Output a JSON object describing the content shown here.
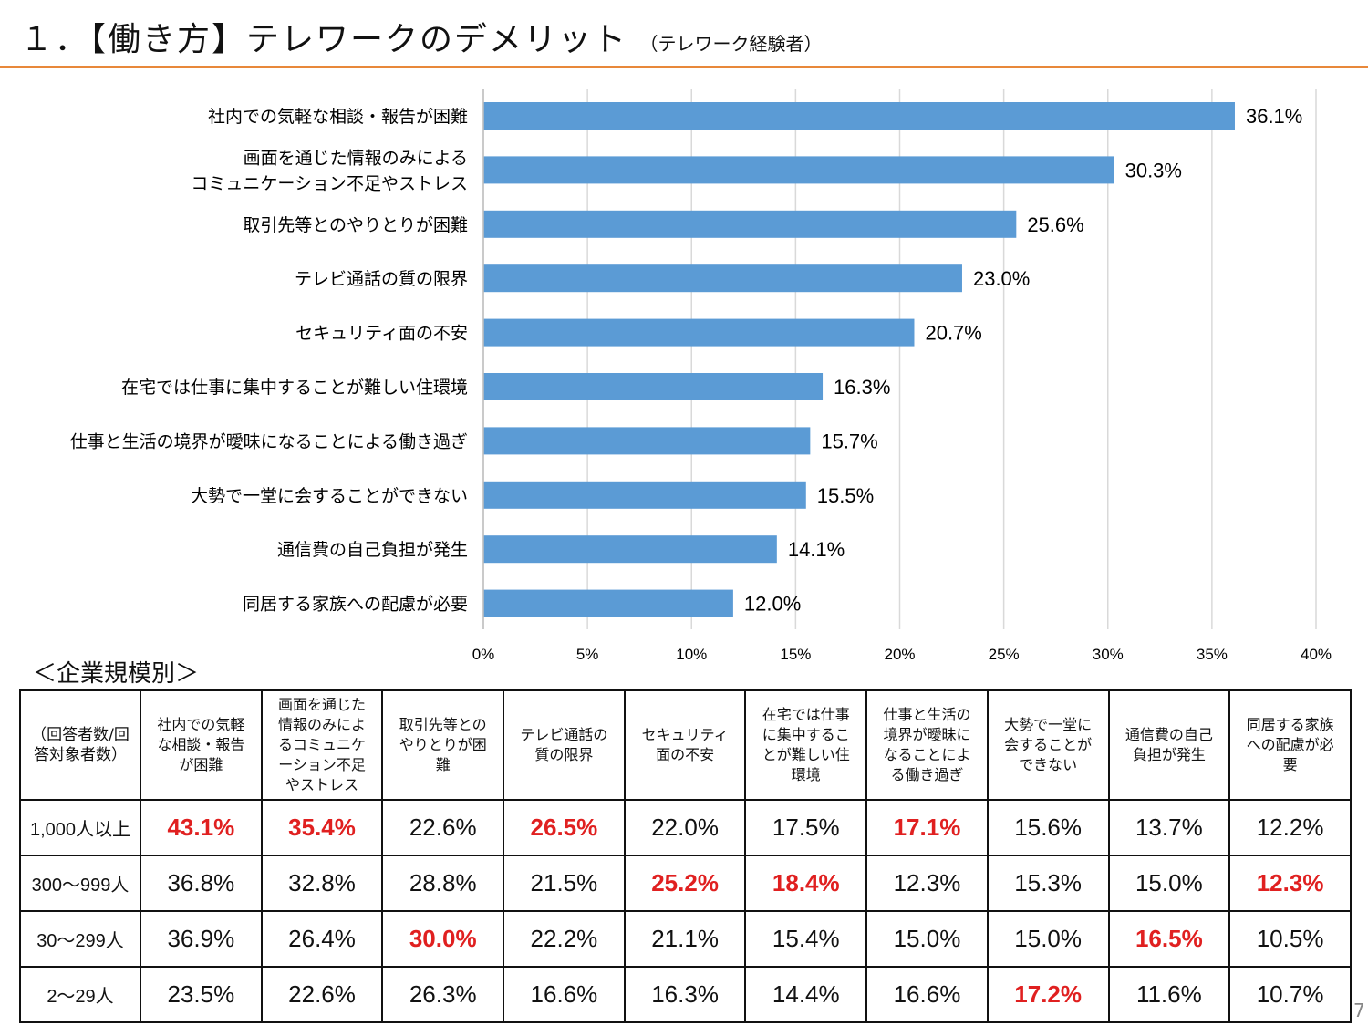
{
  "title": {
    "main": "１．【働き方】テレワークのデメリット",
    "sub": "（テレワーク経験者）"
  },
  "colors": {
    "bar": "#5b9bd5",
    "accent_line": "#e8883a",
    "highlight": "#e02020",
    "grid": "#d9d9d9"
  },
  "chart_data": {
    "type": "bar",
    "orientation": "horizontal",
    "categories": [
      "社内での気軽な相談・報告が困難",
      "画面を通じた情報のみによる\nコミュニケーション不足やストレス",
      "取引先等とのやりとりが困難",
      "テレビ通話の質の限界",
      "セキュリティ面の不安",
      "在宅では仕事に集中することが難しい住環境",
      "仕事と生活の境界が曖昧になることによる働き過ぎ",
      "大勢で一堂に会することができない",
      "通信費の自己負担が発生",
      "同居する家族への配慮が必要"
    ],
    "values": [
      36.1,
      30.3,
      25.6,
      23.0,
      20.7,
      16.3,
      15.7,
      15.5,
      14.1,
      12.0
    ],
    "data_labels": [
      "36.1%",
      "30.3%",
      "25.6%",
      "23.0%",
      "20.7%",
      "16.3%",
      "15.7%",
      "15.5%",
      "14.1%",
      "12.0%"
    ],
    "xlim": [
      0,
      40
    ],
    "xticks": [
      "0%",
      "5%",
      "10%",
      "15%",
      "20%",
      "25%",
      "30%",
      "35%",
      "40%"
    ],
    "grid": true
  },
  "table": {
    "section_label": "＜企業規模別＞",
    "corner_header": "（回答者数/回答対象者数）",
    "headers": [
      "社内での気軽な相談・報告が困難",
      "画面を通じた情報のみによるコミュニケーション不足やストレス",
      "取引先等とのやりとりが困難",
      "テレビ通話の質の限界",
      "セキュリティ面の不安",
      "在宅では仕事に集中することが難しい住環境",
      "仕事と生活の境界が曖昧になることによる働き過ぎ",
      "大勢で一堂に会することができない",
      "通信費の自己負担が発生",
      "同居する家族への配慮が必要"
    ],
    "rows": [
      {
        "label": "1,000人以上",
        "values": [
          "43.1%",
          "35.4%",
          "22.6%",
          "26.5%",
          "22.0%",
          "17.5%",
          "17.1%",
          "15.6%",
          "13.7%",
          "12.2%"
        ],
        "highlighted": [
          0,
          1,
          3,
          6
        ]
      },
      {
        "label": "300～999人",
        "values": [
          "36.8%",
          "32.8%",
          "28.8%",
          "21.5%",
          "25.2%",
          "18.4%",
          "12.3%",
          "15.3%",
          "15.0%",
          "12.3%"
        ],
        "highlighted": [
          4,
          5,
          9
        ]
      },
      {
        "label": "30～299人",
        "values": [
          "36.9%",
          "26.4%",
          "30.0%",
          "22.2%",
          "21.1%",
          "15.4%",
          "15.0%",
          "15.0%",
          "16.5%",
          "10.5%"
        ],
        "highlighted": [
          2,
          8
        ]
      },
      {
        "label": "2～29人",
        "values": [
          "23.5%",
          "22.6%",
          "26.3%",
          "16.6%",
          "16.3%",
          "14.4%",
          "16.6%",
          "17.2%",
          "11.6%",
          "10.7%"
        ],
        "highlighted": [
          7
        ]
      }
    ]
  },
  "page_number": "7"
}
